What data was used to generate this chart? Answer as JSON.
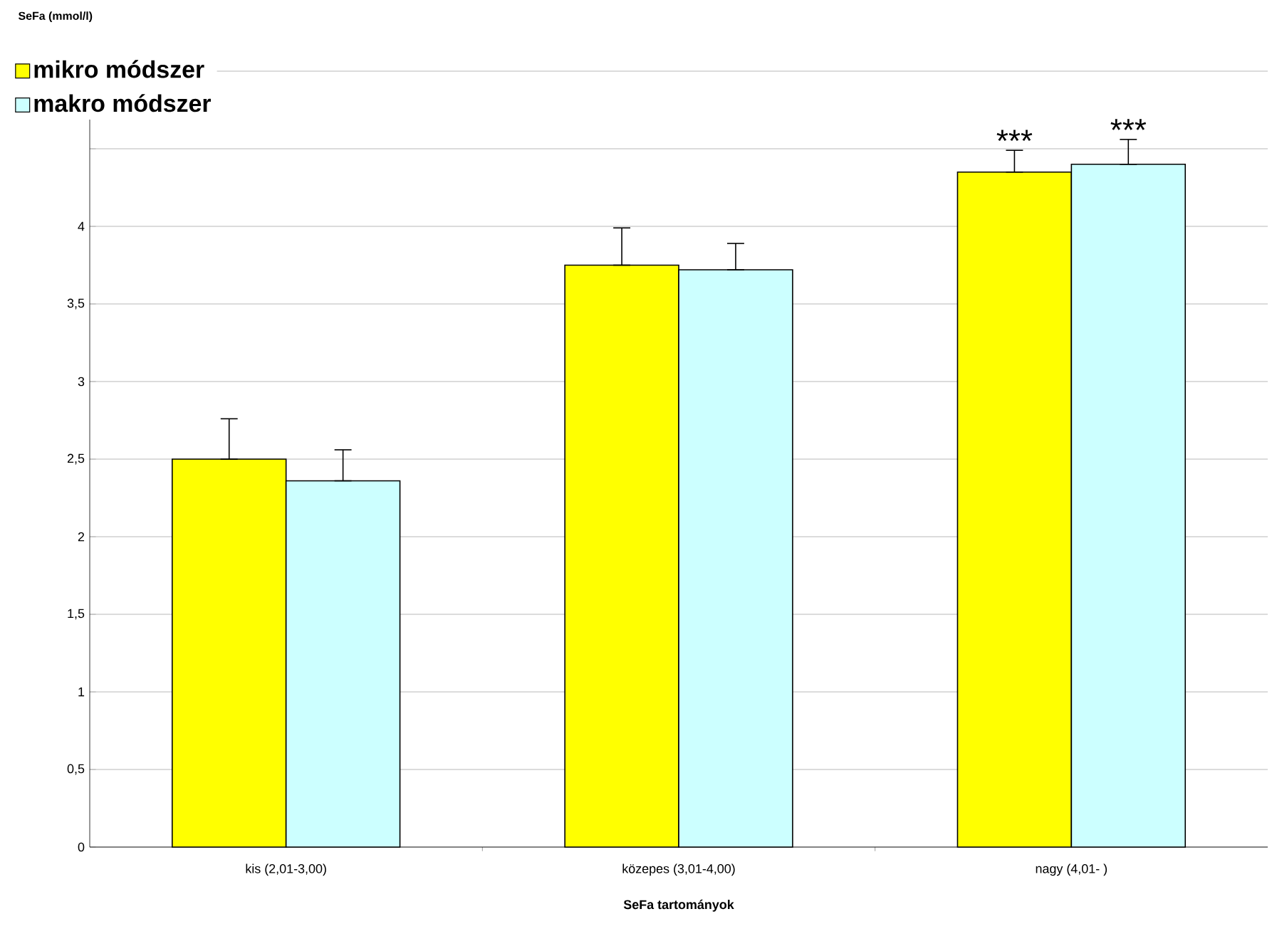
{
  "chart_data": {
    "type": "bar",
    "ylabel": "SeFa (mmol/l)",
    "xlabel": "SeFa tartományok",
    "categories": [
      "kis (2,01-3,00)",
      "közepes (3,01-4,00)",
      "nagy (4,01-  )"
    ],
    "series": [
      {
        "name": "mikro módszer",
        "color": "#ffff00",
        "values": [
          2.5,
          3.75,
          4.35
        ],
        "errors": [
          [
            2.5,
            2.76
          ],
          [
            3.75,
            3.99
          ],
          [
            4.35,
            4.49
          ]
        ]
      },
      {
        "name": "makro módszer",
        "color": "#ccffff",
        "values": [
          2.36,
          3.72,
          4.4
        ],
        "errors": [
          [
            2.36,
            2.56
          ],
          [
            3.72,
            3.89
          ],
          [
            4.4,
            4.56
          ]
        ]
      }
    ],
    "ylim": [
      0,
      5
    ],
    "yticks": [
      0,
      {
        "value": 0.5,
        "label": "0,5"
      },
      1,
      {
        "value": 1.5,
        "label": "1,5"
      },
      2,
      {
        "value": 2.5,
        "label": "2,5"
      },
      3,
      {
        "value": 3.5,
        "label": "3,5"
      },
      4,
      {
        "value": 4.5,
        "label": null
      },
      {
        "value": 5,
        "label": null
      }
    ],
    "grid": "y",
    "legend": "top left",
    "annotations": [
      "***",
      "***"
    ]
  }
}
